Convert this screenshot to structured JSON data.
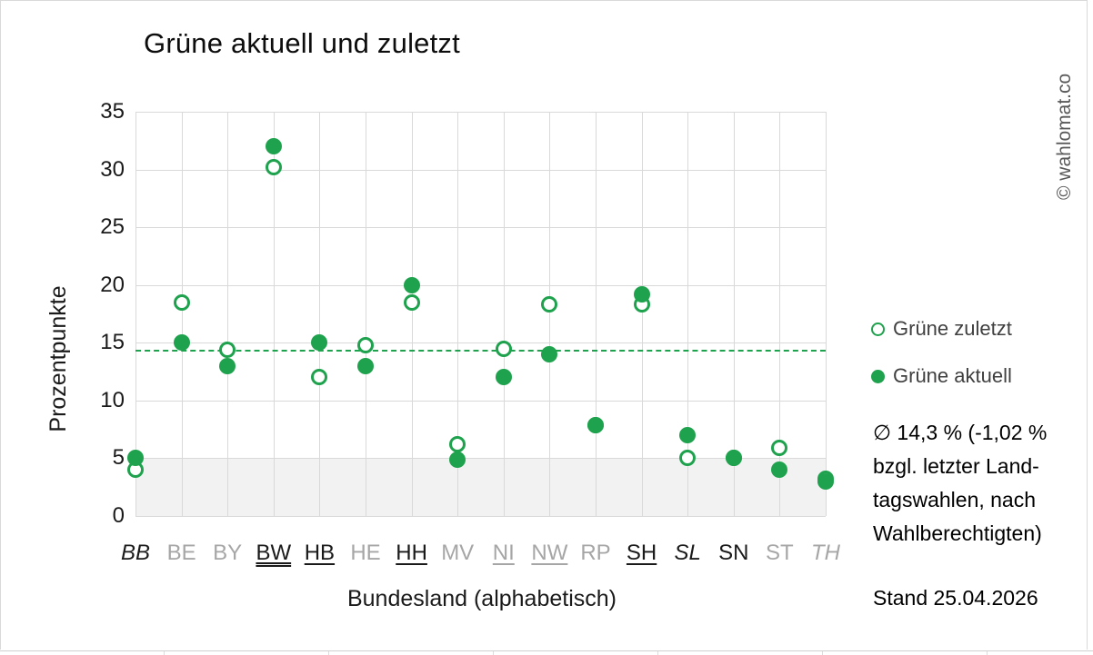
{
  "title": "Grüne aktuell und zuletzt",
  "watermark": {
    "text": "© wahlomat.co"
  },
  "legend": {
    "items": [
      {
        "label": "Grüne zuletzt",
        "marker": "open"
      },
      {
        "label": "Grüne aktuell",
        "marker": "filled"
      }
    ]
  },
  "annotation": {
    "text": "∅ 14,3 % (-1,02 %\nbzgl. letzter Land-\ntagswahlen, nach\nWahlberechtigten)",
    "stand": "Stand 25.04.2026"
  },
  "colors": {
    "green": "#1fa24d",
    "gridline": "#d9d9d9",
    "band": "#f2f2f2",
    "gray_label": "#a6a6a6",
    "black_label": "#1a1a1a",
    "legend_text": "#404040",
    "watermark_text": "#595959"
  },
  "chart_data": {
    "type": "scatter",
    "title": "Grüne aktuell und zuletzt",
    "xlabel": "Bundesland (alphabetisch)",
    "ylabel": "Prozentpunkte",
    "ylim": [
      0,
      35
    ],
    "ytick_step": 5,
    "grid": true,
    "legend_position": "right",
    "average_line": {
      "value": 14.3,
      "style": "dashed",
      "color": "#1fa24d"
    },
    "shaded_band": {
      "from": 0,
      "to": 5,
      "color": "#f2f2f2"
    },
    "categories": [
      "BB",
      "BE",
      "BY",
      "BW",
      "HB",
      "HE",
      "HH",
      "MV",
      "NI",
      "NW",
      "RP",
      "SH",
      "SL",
      "SN",
      "ST",
      "TH"
    ],
    "category_styles": [
      {
        "color": "black",
        "italic": true,
        "underline": "none"
      },
      {
        "color": "gray",
        "italic": false,
        "underline": "none"
      },
      {
        "color": "gray",
        "italic": false,
        "underline": "none"
      },
      {
        "color": "black",
        "italic": false,
        "underline": "double"
      },
      {
        "color": "black",
        "italic": false,
        "underline": "single"
      },
      {
        "color": "gray",
        "italic": false,
        "underline": "none"
      },
      {
        "color": "black",
        "italic": false,
        "underline": "single"
      },
      {
        "color": "gray",
        "italic": false,
        "underline": "none"
      },
      {
        "color": "gray",
        "italic": false,
        "underline": "single"
      },
      {
        "color": "gray",
        "italic": false,
        "underline": "single"
      },
      {
        "color": "gray",
        "italic": false,
        "underline": "none"
      },
      {
        "color": "black",
        "italic": false,
        "underline": "single"
      },
      {
        "color": "black",
        "italic": true,
        "underline": "none"
      },
      {
        "color": "black",
        "italic": false,
        "underline": "none"
      },
      {
        "color": "gray",
        "italic": false,
        "underline": "none"
      },
      {
        "color": "gray",
        "italic": true,
        "underline": "none"
      }
    ],
    "series": [
      {
        "name": "Grüne zuletzt",
        "marker": "open",
        "values": [
          4.0,
          18.5,
          14.4,
          30.2,
          12.0,
          14.8,
          18.5,
          6.2,
          14.5,
          18.3,
          7.9,
          18.3,
          5.0,
          5.0,
          5.9,
          3.2
        ]
      },
      {
        "name": "Grüne aktuell",
        "marker": "filled",
        "values": [
          5.0,
          15.0,
          13.0,
          32.0,
          15.0,
          13.0,
          20.0,
          4.9,
          12.0,
          14.0,
          7.9,
          19.2,
          7.0,
          5.0,
          4.0,
          3.0
        ]
      }
    ]
  }
}
